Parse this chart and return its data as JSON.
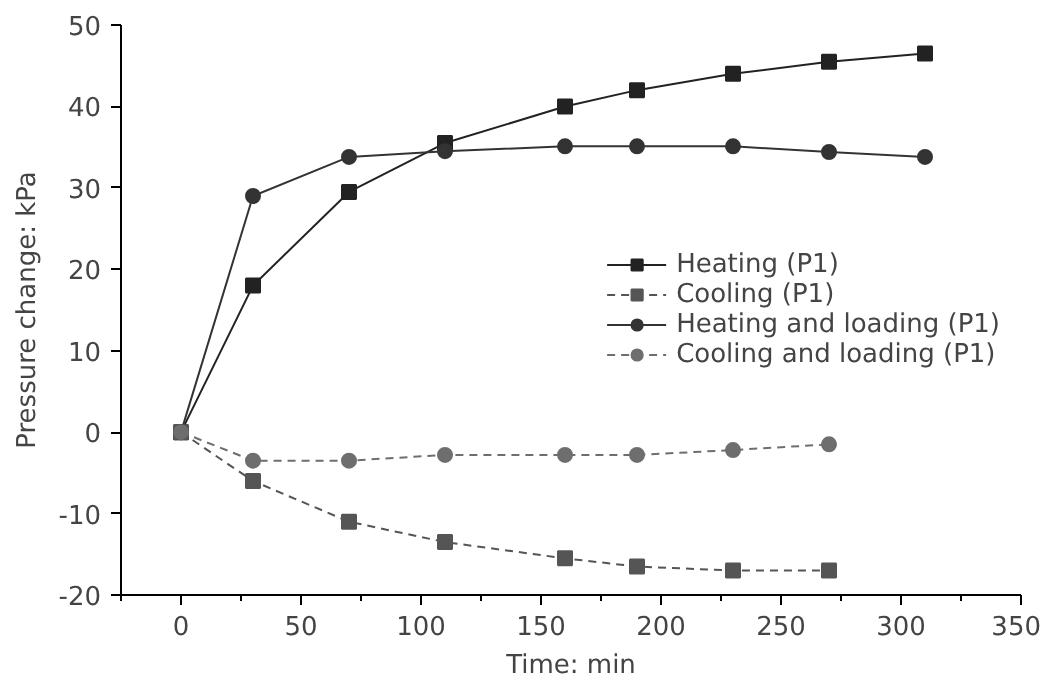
{
  "chart_data": {
    "type": "line",
    "xlabel": "Time: min",
    "ylabel": "Pressure change: kPa",
    "xlim": [
      -25,
      350
    ],
    "ylim": [
      -20,
      50
    ],
    "xticks": [
      0,
      50,
      100,
      150,
      200,
      250,
      300,
      350
    ],
    "yticks": [
      -20,
      -10,
      0,
      10,
      20,
      30,
      40,
      50
    ],
    "grid": false,
    "legend": "right",
    "series": [
      {
        "name": "Heating (P1)",
        "color": "#222222",
        "marker": "square",
        "line_style": "solid",
        "x": [
          0,
          30,
          70,
          110,
          160,
          190,
          230,
          270,
          310
        ],
        "values": [
          0,
          18,
          29.5,
          35.5,
          40,
          42,
          44,
          45.5,
          46.5
        ]
      },
      {
        "name": "Cooling (P1)",
        "color": "#555555",
        "marker": "square",
        "line_style": "dashed",
        "x": [
          0,
          30,
          70,
          110,
          160,
          190,
          230,
          270
        ],
        "values": [
          0,
          -6,
          -11,
          -13.5,
          -15.5,
          -16.5,
          -17,
          -17
        ]
      },
      {
        "name": "Heating and loading (P1)",
        "color": "#333333",
        "marker": "circle",
        "line_style": "solid",
        "x": [
          0,
          30,
          70,
          110,
          160,
          190,
          230,
          270,
          310
        ],
        "values": [
          0,
          29,
          33.8,
          34.5,
          35.1,
          35.1,
          35.1,
          34.4,
          33.8
        ]
      },
      {
        "name": "Cooling and loading (P1)",
        "color": "#6e6e6e",
        "marker": "circle",
        "line_style": "dashed",
        "x": [
          0,
          30,
          70,
          110,
          160,
          190,
          230,
          270
        ],
        "values": [
          0,
          -3.5,
          -3.5,
          -2.8,
          -2.8,
          -2.8,
          -2.2,
          -1.5
        ]
      }
    ]
  }
}
